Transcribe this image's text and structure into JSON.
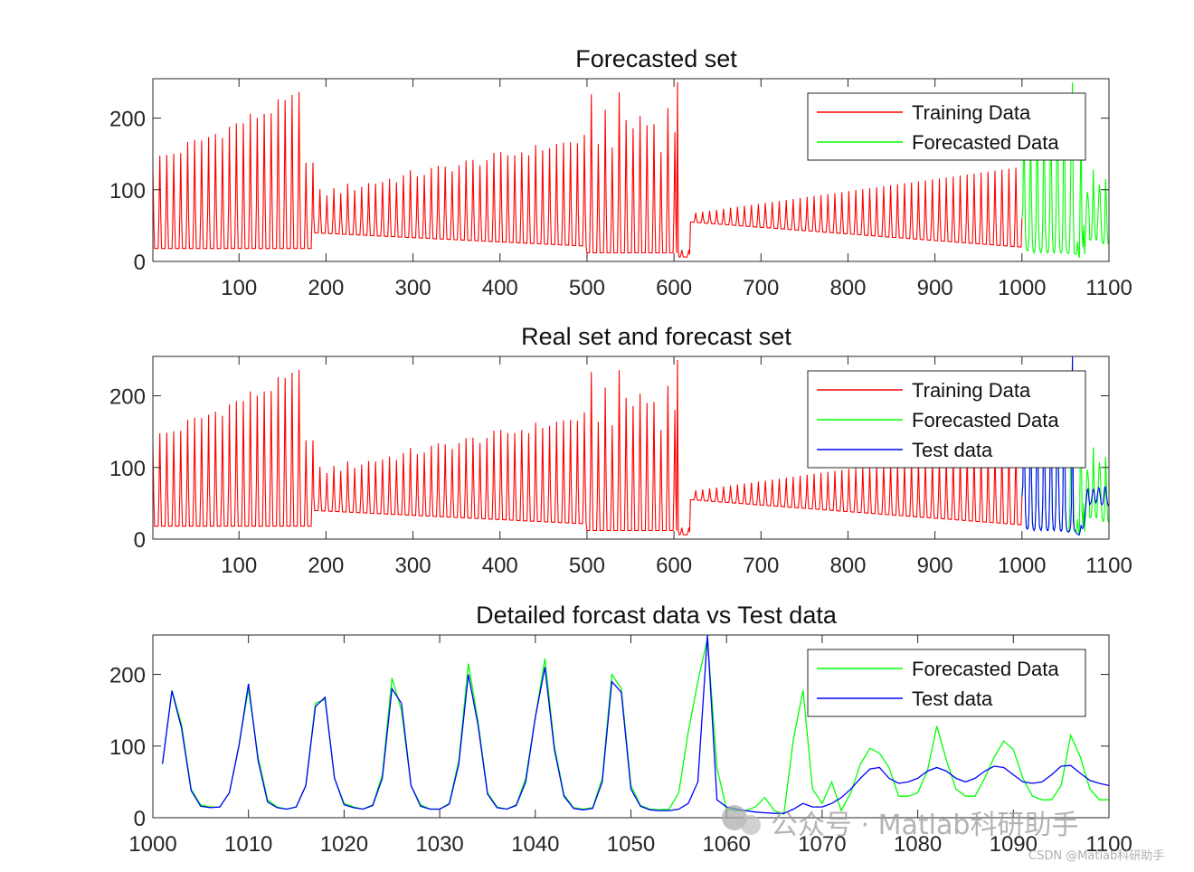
{
  "colors": {
    "training": "#ff0000",
    "forecast": "#00ff00",
    "test": "#0000ff",
    "axis": "#262626"
  },
  "watermark": {
    "text": "公众号 · Matlab科研助手",
    "corner_text": "CSDN @Matlab科研助手"
  },
  "chart_data": [
    {
      "type": "line",
      "title": "Forecasted set",
      "xlim": [
        1,
        1100
      ],
      "ylim": [
        0,
        255
      ],
      "xticks": [
        100,
        200,
        300,
        400,
        500,
        600,
        700,
        800,
        900,
        1000,
        1100
      ],
      "yticks": [
        0,
        100,
        200
      ],
      "legend": [
        "Training Data",
        "Forecasted Data"
      ],
      "legend_position": "top-right",
      "series": [
        {
          "name": "Training Data",
          "x_range": [
            1,
            1000
          ],
          "description": "oscillating peaks ~6-235, segments: 1-185, 186-605, 606-618, 619-1000"
        },
        {
          "name": "Forecasted Data",
          "x_range": [
            1000,
            1100
          ],
          "description": "forecast oscillation continuing from training"
        }
      ]
    },
    {
      "type": "line",
      "title": "Real set and forecast set",
      "xlim": [
        1,
        1100
      ],
      "ylim": [
        0,
        255
      ],
      "xticks": [
        100,
        200,
        300,
        400,
        500,
        600,
        700,
        800,
        900,
        1000,
        1100
      ],
      "yticks": [
        0,
        100,
        200
      ],
      "legend": [
        "Training Data",
        "Forecasted Data",
        "Test data"
      ],
      "legend_position": "top-right",
      "series": [
        {
          "name": "Training Data",
          "x_range": [
            1,
            1000
          ]
        },
        {
          "name": "Forecasted Data",
          "x_range": [
            1000,
            1100
          ]
        },
        {
          "name": "Test data",
          "x_range": [
            1000,
            1100
          ]
        }
      ]
    },
    {
      "type": "line",
      "title": "Detailed forcast data vs Test data",
      "xlim": [
        1000,
        1100
      ],
      "ylim": [
        0,
        255
      ],
      "xticks": [
        1000,
        1010,
        1020,
        1030,
        1040,
        1050,
        1060,
        1070,
        1080,
        1090,
        1100
      ],
      "yticks": [
        0,
        100,
        200
      ],
      "legend": [
        "Forecasted Data",
        "Test data"
      ],
      "legend_position": "top-right",
      "x": [
        1001,
        1002,
        1003,
        1004,
        1005,
        1006,
        1007,
        1008,
        1009,
        1010,
        1011,
        1012,
        1013,
        1014,
        1015,
        1016,
        1017,
        1018,
        1019,
        1020,
        1021,
        1022,
        1023,
        1024,
        1025,
        1026,
        1027,
        1028,
        1029,
        1030,
        1031,
        1032,
        1033,
        1034,
        1035,
        1036,
        1037,
        1038,
        1039,
        1040,
        1041,
        1042,
        1043,
        1044,
        1045,
        1046,
        1047,
        1048,
        1049,
        1050,
        1051,
        1052,
        1053,
        1054,
        1055,
        1056,
        1057,
        1058,
        1059,
        1060,
        1061,
        1062,
        1063,
        1064,
        1065,
        1066,
        1067,
        1068,
        1069,
        1070,
        1071,
        1072,
        1073,
        1074,
        1075,
        1076,
        1077,
        1078,
        1079,
        1080,
        1081,
        1082,
        1083,
        1084,
        1085,
        1086,
        1087,
        1088,
        1089,
        1090,
        1091,
        1092,
        1093,
        1094,
        1095,
        1096,
        1097,
        1098,
        1099,
        1100
      ],
      "forecast": [
        75,
        178,
        130,
        40,
        18,
        15,
        15,
        35,
        100,
        180,
        85,
        25,
        15,
        12,
        15,
        45,
        160,
        165,
        55,
        20,
        15,
        12,
        18,
        60,
        195,
        150,
        45,
        18,
        12,
        12,
        20,
        80,
        215,
        135,
        35,
        15,
        12,
        18,
        55,
        140,
        222,
        100,
        32,
        14,
        12,
        14,
        55,
        200,
        180,
        45,
        17,
        12,
        11,
        12,
        35,
        120,
        190,
        250,
        70,
        12,
        10,
        10,
        15,
        28,
        10,
        5,
        110,
        178,
        40,
        20,
        50,
        10,
        35,
        75,
        97,
        90,
        70,
        30,
        30,
        35,
        65,
        128,
        80,
        40,
        30,
        30,
        55,
        85,
        107,
        95,
        55,
        30,
        25,
        25,
        45,
        115,
        85,
        40,
        25,
        25
      ],
      "test": [
        75,
        177,
        125,
        38,
        16,
        14,
        15,
        35,
        100,
        187,
        80,
        22,
        14,
        12,
        15,
        45,
        155,
        168,
        55,
        18,
        14,
        12,
        17,
        55,
        180,
        160,
        45,
        16,
        12,
        12,
        19,
        75,
        200,
        130,
        33,
        14,
        12,
        17,
        50,
        140,
        210,
        95,
        30,
        13,
        11,
        13,
        50,
        190,
        175,
        40,
        16,
        11,
        10,
        10,
        12,
        20,
        50,
        255,
        25,
        15,
        12,
        10,
        8,
        7,
        6,
        6,
        12,
        20,
        15,
        15,
        20,
        28,
        40,
        55,
        68,
        70,
        55,
        48,
        50,
        55,
        65,
        70,
        65,
        55,
        50,
        55,
        65,
        72,
        70,
        60,
        50,
        48,
        50,
        60,
        72,
        73,
        62,
        52,
        48,
        45
      ]
    }
  ]
}
